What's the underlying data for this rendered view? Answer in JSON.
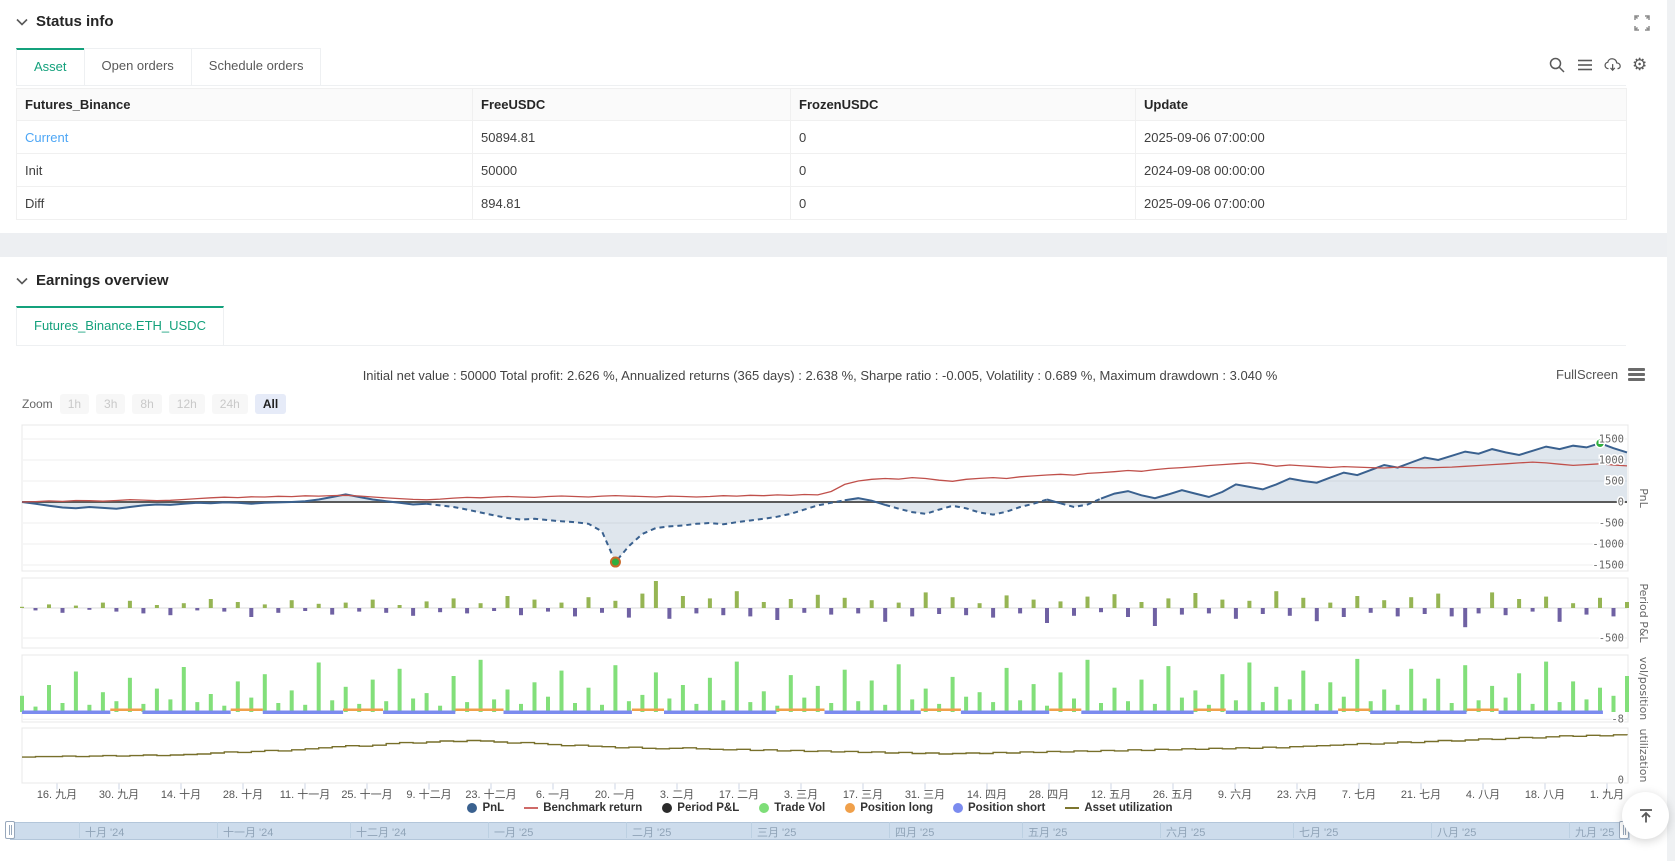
{
  "status_info": {
    "title": "Status info",
    "tabs": [
      {
        "label": "Asset"
      },
      {
        "label": "Open orders"
      },
      {
        "label": "Schedule orders"
      }
    ],
    "active_tab": "Asset",
    "toolbar_icons": [
      "search-icon",
      "menu-icon",
      "cloud-download-icon",
      "settings-icon"
    ],
    "table": {
      "columns": [
        "Futures_Binance",
        "FreeUSDC",
        "FrozenUSDC",
        "Update"
      ],
      "rows": [
        {
          "name": "Current",
          "free_usdc": "50894.81",
          "frozen_usdc": "0",
          "update": "2025-09-06 07:00:00"
        },
        {
          "name": "Init",
          "free_usdc": "50000",
          "frozen_usdc": "0",
          "update": "2024-09-08 00:00:00"
        },
        {
          "name": "Diff",
          "free_usdc": "894.81",
          "frozen_usdc": "0",
          "update": "2025-09-06 07:00:00"
        }
      ]
    }
  },
  "earnings": {
    "title": "Earnings overview",
    "tab": "Futures_Binance.ETH_USDC",
    "stats_line": "Initial net value : 50000 Total profit: 2.626 %, Annualized returns (365 days) : 2.638 %, Sharpe ratio : -0.005, Volatility : 0.689 %, Maximum drawdown : 3.040 %",
    "fullscreen_label": "FullScreen",
    "zoom": {
      "label": "Zoom",
      "options": [
        "1h",
        "3h",
        "8h",
        "12h",
        "24h",
        "All"
      ],
      "active": "All",
      "disabled": [
        "1h",
        "3h",
        "8h",
        "12h",
        "24h"
      ]
    },
    "chart_data": {
      "type": "mixed",
      "x_labels": [
        "16. 九月",
        "30. 九月",
        "14. 十月",
        "28. 十月",
        "11. 十一月",
        "25. 十一月",
        "9. 十二月",
        "23. 十二月",
        "6. 一月",
        "20. 一月",
        "3. 二月",
        "17. 二月",
        "3. 三月",
        "17. 三月",
        "31. 三月",
        "14. 四月",
        "28. 四月",
        "12. 五月",
        "26. 五月",
        "9. 六月",
        "23. 六月",
        "7. 七月",
        "21. 七月",
        "4. 八月",
        "18. 八月",
        "1. 九月"
      ],
      "panels": [
        {
          "name": "pnl-panel",
          "ylabel": "PnL",
          "yticks": [
            1500,
            1000,
            500,
            0,
            -500,
            -1000,
            -1500
          ],
          "series": [
            {
              "name": "PnL",
              "type": "area-line",
              "color": "#3a618f",
              "values": [
                0,
                -40,
                -90,
                -130,
                -150,
                -120,
                -140,
                -160,
                -120,
                -80,
                -60,
                -70,
                -40,
                -20,
                -30,
                -10,
                -20,
                -40,
                -20,
                -10,
                0,
                20,
                60,
                120,
                180,
                120,
                60,
                20,
                -20,
                -60,
                -40,
                -80,
                -120,
                -180,
                -250,
                -320,
                -380,
                -420,
                -400,
                -430,
                -460,
                -480,
                -520,
                -700,
                -1430,
                -1050,
                -760,
                -620,
                -580,
                -560,
                -520,
                -500,
                -530,
                -480,
                -440,
                -400,
                -350,
                -280,
                -180,
                -80,
                -20,
                40,
                90,
                30,
                -70,
                -160,
                -240,
                -280,
                -180,
                -90,
                -150,
                -250,
                -300,
                -230,
                -120,
                -40,
                60,
                -30,
                -120,
                -60,
                80,
                200,
                260,
                160,
                90,
                180,
                280,
                200,
                120,
                240,
                420,
                360,
                300,
                420,
                560,
                500,
                460,
                580,
                700,
                640,
                760,
                880,
                820,
                940,
                1060,
                1000,
                1100,
                1200,
                1150,
                1260,
                1180,
                1120,
                1220,
                1320,
                1260,
                1340,
                1300,
                1400,
                1280,
                1180
              ]
            },
            {
              "name": "Benchmark return",
              "type": "line",
              "color": "#c0504b",
              "values": [
                0,
                10,
                25,
                15,
                35,
                30,
                20,
                35,
                55,
                45,
                30,
                40,
                60,
                80,
                100,
                115,
                105,
                125,
                118,
                135,
                128,
                148,
                140,
                152,
                160,
                142,
                120,
                98,
                80,
                62,
                52,
                70,
                92,
                110,
                100,
                118,
                132,
                120,
                110,
                130,
                142,
                130,
                120,
                140,
                152,
                140,
                130,
                120,
                140,
                130,
                120,
                132,
                150,
                140,
                160,
                150,
                168,
                158,
                178,
                170,
                250,
                420,
                500,
                540,
                560,
                545,
                580,
                560,
                520,
                492,
                540,
                562,
                582,
                560,
                600,
                622,
                642,
                660,
                640,
                680,
                700,
                722,
                750,
                730,
                772,
                800,
                820,
                842,
                870,
                890,
                912,
                930,
                900,
                852,
                880,
                860,
                840,
                822,
                842,
                830,
                820,
                810,
                832,
                820,
                812,
                822,
                832,
                850,
                870,
                890,
                910,
                932,
                950,
                930,
                900,
                872,
                890,
                910,
                882,
                860
              ]
            }
          ],
          "markers": {
            "min_value": -1430,
            "max_value": 1400
          }
        },
        {
          "name": "period-pnl-panel",
          "ylabel": "Period P&L",
          "yticks": [
            -500
          ],
          "series": [
            {
              "name": "Period P&L",
              "type": "bar",
              "pos_color": "#96b554",
              "neg_color": "#6f61a3",
              "values": [
                20,
                -40,
                60,
                -80,
                40,
                -30,
                90,
                -60,
                120,
                -90,
                50,
                -120,
                80,
                -40,
                150,
                -60,
                100,
                -150,
                60,
                -80,
                130,
                -50,
                70,
                -110,
                90,
                -60,
                140,
                -80,
                50,
                -130,
                110,
                -70,
                160,
                -90,
                80,
                -50,
                200,
                -120,
                140,
                -60,
                90,
                -140,
                180,
                -80,
                120,
                -160,
                240,
                450,
                -180,
                200,
                -90,
                160,
                -120,
                280,
                -140,
                100,
                -200,
                150,
                -80,
                220,
                -110,
                170,
                -90,
                130,
                -230,
                90,
                -140,
                260,
                -100,
                180,
                -120,
                80,
                -160,
                210,
                -90,
                140,
                -250,
                110,
                -130,
                190,
                -70,
                230,
                -150,
                100,
                -300,
                160,
                -110,
                250,
                -90,
                140,
                -180,
                120,
                -100,
                280,
                -130,
                170,
                -220,
                90,
                -150,
                200,
                -80,
                130,
                -140,
                180,
                -100,
                240,
                -140,
                -320,
                -90,
                260,
                -120,
                150,
                -60,
                190,
                -230,
                80,
                -110,
                170,
                -140,
                100
              ]
            }
          ]
        },
        {
          "name": "vol-position-panel",
          "ylabel": "vol/position",
          "yticks": [
            -8
          ],
          "series": [
            {
              "name": "Trade Vol",
              "type": "bar",
              "color": "#82df7a",
              "values": [
                18,
                6,
                30,
                10,
                45,
                8,
                22,
                12,
                38,
                9,
                26,
                14,
                50,
                11,
                20,
                7,
                34,
                16,
                42,
                10,
                24,
                8,
                55,
                13,
                28,
                9,
                36,
                12,
                48,
                15,
                21,
                7,
                40,
                11,
                58,
                14,
                25,
                9,
                33,
                17,
                46,
                10,
                27,
                8,
                52,
                12,
                19,
                44,
                15,
                30,
                9,
                38,
                13,
                56,
                11,
                23,
                7,
                41,
                16,
                29,
                10,
                47,
                12,
                35,
                8,
                53,
                14,
                26,
                9,
                39,
                17,
                22,
                11,
                49,
                13,
                31,
                7,
                44,
                15,
                58,
                10,
                27,
                12,
                36,
                9,
                51,
                16,
                24,
                8,
                42,
                13,
                55,
                11,
                28,
                14,
                46,
                9,
                33,
                17,
                59,
                12,
                25,
                8,
                48,
                15,
                37,
                10,
                52,
                13,
                29,
                16,
                43,
                9,
                56,
                11,
                34,
                14,
                27,
                18,
                40
              ]
            },
            {
              "name": "Position short",
              "type": "segments",
              "color": "#7b8bef",
              "segments": [
                [
                  0,
                  0.055
                ],
                [
                  0.075,
                  0.13
                ],
                [
                  0.15,
                  0.2
                ],
                [
                  0.225,
                  0.27
                ],
                [
                  0.3,
                  0.38
                ],
                [
                  0.4,
                  0.47
                ],
                [
                  0.5,
                  0.56
                ],
                [
                  0.585,
                  0.64
                ],
                [
                  0.66,
                  0.73
                ],
                [
                  0.75,
                  0.82
                ],
                [
                  0.84,
                  0.9
                ],
                [
                  0.92,
                  0.985
                ]
              ]
            },
            {
              "name": "Position long",
              "type": "segments",
              "color": "#f0a04a",
              "segments": [
                [
                  0.055,
                  0.075
                ],
                [
                  0.13,
                  0.15
                ],
                [
                  0.2,
                  0.225
                ],
                [
                  0.27,
                  0.3
                ],
                [
                  0.38,
                  0.4
                ],
                [
                  0.47,
                  0.5
                ],
                [
                  0.56,
                  0.585
                ],
                [
                  0.64,
                  0.66
                ],
                [
                  0.73,
                  0.75
                ],
                [
                  0.82,
                  0.84
                ],
                [
                  0.9,
                  0.92
                ]
              ]
            }
          ]
        },
        {
          "name": "utilization-panel",
          "ylabel": "utilization",
          "yticks": [
            0
          ],
          "series": [
            {
              "name": "Asset utilization",
              "type": "step-line",
              "color": "#776f2a",
              "values": [
                0.44,
                0.45,
                0.45,
                0.46,
                0.45,
                0.46,
                0.47,
                0.46,
                0.47,
                0.48,
                0.47,
                0.48,
                0.49,
                0.5,
                0.52,
                0.54,
                0.53,
                0.55,
                0.57,
                0.56,
                0.58,
                0.6,
                0.62,
                0.64,
                0.66,
                0.65,
                0.67,
                0.7,
                0.72,
                0.71,
                0.73,
                0.75,
                0.74,
                0.76,
                0.75,
                0.73,
                0.71,
                0.72,
                0.7,
                0.68,
                0.66,
                0.67,
                0.65,
                0.64,
                0.62,
                0.63,
                0.61,
                0.6,
                0.61,
                0.62,
                0.6,
                0.59,
                0.58,
                0.59,
                0.57,
                0.58,
                0.56,
                0.57,
                0.55,
                0.56,
                0.54,
                0.55,
                0.53,
                0.54,
                0.52,
                0.53,
                0.51,
                0.52,
                0.5,
                0.51,
                0.52,
                0.51,
                0.53,
                0.52,
                0.54,
                0.53,
                0.55,
                0.54,
                0.56,
                0.55,
                0.57,
                0.56,
                0.58,
                0.57,
                0.59,
                0.58,
                0.6,
                0.59,
                0.61,
                0.6,
                0.62,
                0.61,
                0.63,
                0.62,
                0.64,
                0.65,
                0.66,
                0.67,
                0.68,
                0.7,
                0.69,
                0.71,
                0.73,
                0.72,
                0.74,
                0.76,
                0.75,
                0.77,
                0.79,
                0.78,
                0.8,
                0.82,
                0.81,
                0.83,
                0.85,
                0.84,
                0.86,
                0.85,
                0.87,
                0.86
              ]
            }
          ]
        }
      ]
    }
  },
  "legend": [
    {
      "label": "PnL",
      "color": "#3a618f",
      "marker": "circle"
    },
    {
      "label": "Benchmark return",
      "color": "#cf6a68",
      "marker": "line"
    },
    {
      "label": "Period P&L",
      "color": "#2b2b2b",
      "marker": "circle"
    },
    {
      "label": "Trade Vol",
      "color": "#7ede78",
      "marker": "circle"
    },
    {
      "label": "Position long",
      "color": "#f0a04a",
      "marker": "circle"
    },
    {
      "label": "Position short",
      "color": "#7b8bef",
      "marker": "circle"
    },
    {
      "label": "Asset utilization",
      "color": "#7d762f",
      "marker": "line"
    }
  ],
  "navigator": {
    "months": [
      "十月 '24",
      "十一月 '24",
      "十二月 '24",
      "一月 '25",
      "二月 '25",
      "三月 '25",
      "四月 '25",
      "五月 '25",
      "六月 '25",
      "七月 '25",
      "八月 '25",
      "九月 '25"
    ]
  },
  "colors": {
    "accent_green": "#14a17c",
    "link_blue": "#4da6f5",
    "alert_red": "#f5332c",
    "marker_green": "#2fae3e"
  }
}
